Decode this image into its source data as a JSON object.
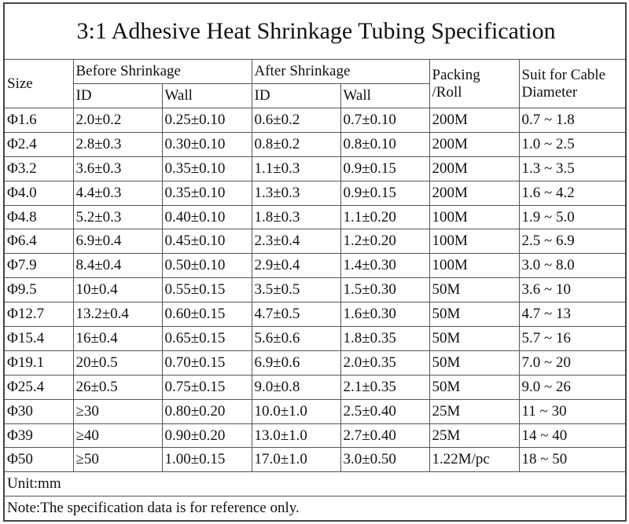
{
  "title": "3:1 Adhesive Heat Shrinkage Tubing Specification",
  "table": {
    "header": {
      "size": "Size",
      "before": "Before Shrinkage",
      "after": "After Shrinkage",
      "packing": [
        "Packing",
        "/Roll"
      ],
      "suit": [
        "Suit for Cable",
        "Diameter"
      ],
      "sub": [
        "ID",
        "Wall",
        "ID",
        "Wall"
      ]
    },
    "rows": [
      [
        "Φ1.6",
        "2.0±0.2",
        "0.25±0.10",
        "0.6±0.2",
        "0.7±0.10",
        "200M",
        "0.7 ~ 1.8"
      ],
      [
        "Φ2.4",
        "2.8±0.3",
        "0.30±0.10",
        "0.8±0.2",
        "0.8±0.10",
        "200M",
        "1.0 ~ 2.5"
      ],
      [
        "Φ3.2",
        "3.6±0.3",
        "0.35±0.10",
        "1.1±0.3",
        "0.9±0.15",
        "200M",
        "1.3 ~ 3.5"
      ],
      [
        "Φ4.0",
        "4.4±0.3",
        "0.35±0.10",
        "1.3±0.3",
        "0.9±0.15",
        "200M",
        "1.6 ~ 4.2"
      ],
      [
        "Φ4.8",
        "5.2±0.3",
        "0.40±0.10",
        "1.8±0.3",
        "1.1±0.20",
        "100M",
        "1.9 ~ 5.0"
      ],
      [
        "Φ6.4",
        "6.9±0.4",
        "0.45±0.10",
        "2.3±0.4",
        "1.2±0.20",
        "100M",
        "2.5 ~ 6.9"
      ],
      [
        "Φ7.9",
        "8.4±0.4",
        "0.50±0.10",
        "2.9±0.4",
        "1.4±0.30",
        "100M",
        "3.0 ~ 8.0"
      ],
      [
        "Φ9.5",
        "10±0.4",
        "0.55±0.15",
        "3.5±0.5",
        "1.5±0.30",
        "50M",
        "3.6 ~ 10"
      ],
      [
        "Φ12.7",
        "13.2±0.4",
        "0.60±0.15",
        "4.7±0.5",
        "1.6±0.30",
        "50M",
        "4.7 ~ 13"
      ],
      [
        "Φ15.4",
        "16±0.4",
        "0.65±0.15",
        "5.6±0.6",
        "1.8±0.35",
        "50M",
        "5.7 ~ 16"
      ],
      [
        "Φ19.1",
        "20±0.5",
        "0.70±0.15",
        "6.9±0.6",
        "2.0±0.35",
        "50M",
        "7.0 ~ 20"
      ],
      [
        "Φ25.4",
        "26±0.5",
        "0.75±0.15",
        "9.0±0.8",
        "2.1±0.35",
        "50M",
        "9.0 ~ 26"
      ],
      [
        "Φ30",
        "≥30",
        "0.80±0.20",
        "10.0±1.0",
        "2.5±0.40",
        "25M",
        "11 ~ 30"
      ],
      [
        "Φ39",
        "≥40",
        "0.90±0.20",
        "13.0±1.0",
        "2.7±0.40",
        "25M",
        "14 ~ 40"
      ],
      [
        "Φ50",
        "≥50",
        "1.00±0.15",
        "17.0±1.0",
        "3.0±0.50",
        "1.22M/pc",
        "18 ~ 50"
      ]
    ],
    "unit": "Unit:mm",
    "note": "Note:The specification data is for reference only."
  }
}
